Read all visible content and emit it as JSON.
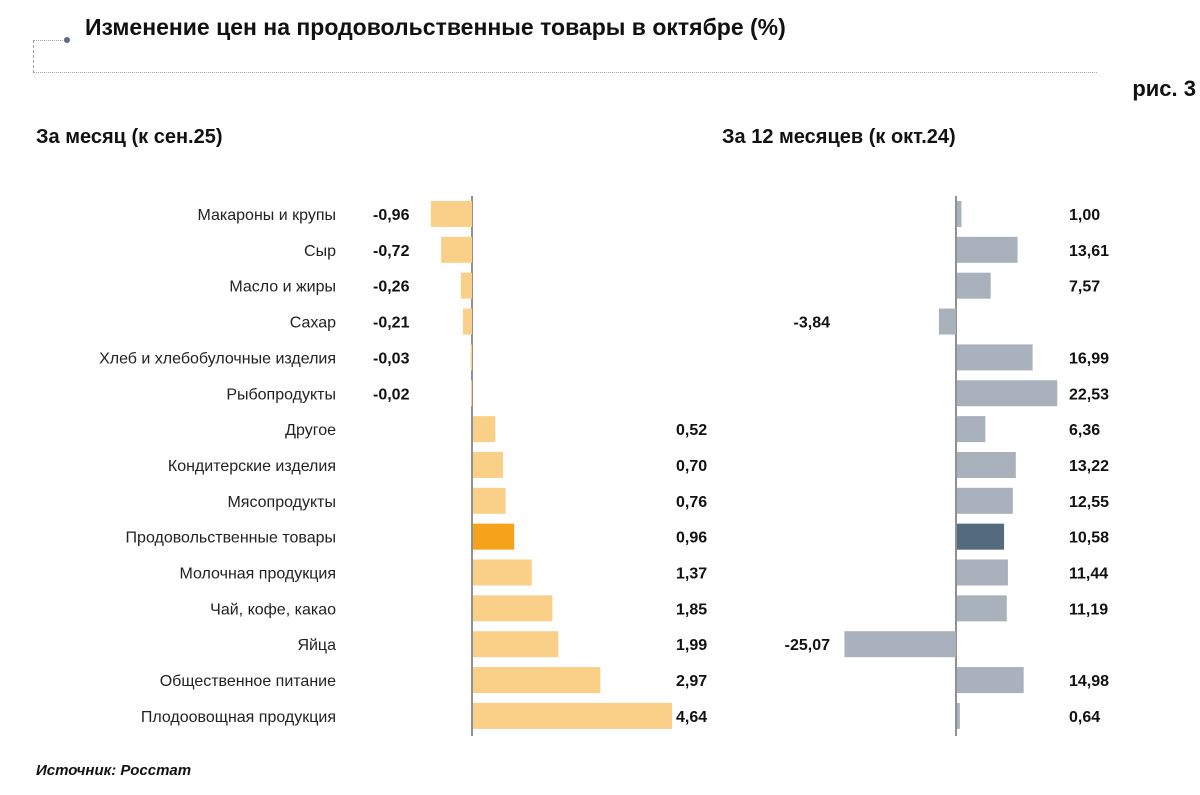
{
  "title": "Изменение цен на продовольственные товары в октябре (%)",
  "figure_label": "рис. 3",
  "source": "Источник: Росстат",
  "chart_data": [
    {
      "type": "bar",
      "orientation": "horizontal",
      "title": "За месяц (к сен.25)",
      "categories": [
        "Макароны и крупы",
        "Сыр",
        "Масло и жиры",
        "Сахар",
        "Хлеб и хлебобулочные изделия",
        "Рыбопродукты",
        "Другое",
        "Кондитерские изделия",
        "Мясопродукты",
        "Продовольственные товары",
        "Молочная продукция",
        "Чай, кофе, какао",
        "Яйца",
        "Общественное питание",
        "Плодоовощная продукция"
      ],
      "values": [
        -0.96,
        -0.72,
        -0.26,
        -0.21,
        -0.03,
        -0.02,
        0.52,
        0.7,
        0.76,
        0.96,
        1.37,
        1.85,
        1.99,
        2.97,
        4.64
      ],
      "labels": [
        "-0,96",
        "-0,72",
        "-0,26",
        "-0,21",
        "-0,03",
        "-0,02",
        "0,52",
        "0,70",
        "0,76",
        "0,96",
        "1,37",
        "1,85",
        "1,99",
        "2,97",
        "4,64"
      ],
      "highlight_category": "Продовольственные товары",
      "colors": {
        "bar": "#FAD089",
        "highlight": "#F7A21B"
      },
      "grid": false
    },
    {
      "type": "bar",
      "orientation": "horizontal",
      "title": "За 12 месяцев (к окт.24)",
      "categories": [
        "Макароны и крупы",
        "Сыр",
        "Масло и жиры",
        "Сахар",
        "Хлеб и хлебобулочные изделия",
        "Рыбопродукты",
        "Другое",
        "Кондитерские изделия",
        "Мясопродукты",
        "Продовольственные товары",
        "Молочная продукция",
        "Чай, кофе, какао",
        "Яйца",
        "Общественное питание",
        "Плодоовощная продукция"
      ],
      "values": [
        1.0,
        13.61,
        7.57,
        -3.84,
        16.99,
        22.53,
        6.36,
        13.22,
        12.55,
        10.58,
        11.44,
        11.19,
        -25.07,
        14.98,
        0.64
      ],
      "labels": [
        "1,00",
        "13,61",
        "7,57",
        "-3,84",
        "16,99",
        "22,53",
        "6,36",
        "13,22",
        "12,55",
        "10,58",
        "11,44",
        "11,19",
        "-25,07",
        "14,98",
        "0,64"
      ],
      "highlight_category": "Продовольственные товары",
      "colors": {
        "bar": "#A9B2BC",
        "highlight": "#546A7D"
      },
      "grid": false
    }
  ]
}
